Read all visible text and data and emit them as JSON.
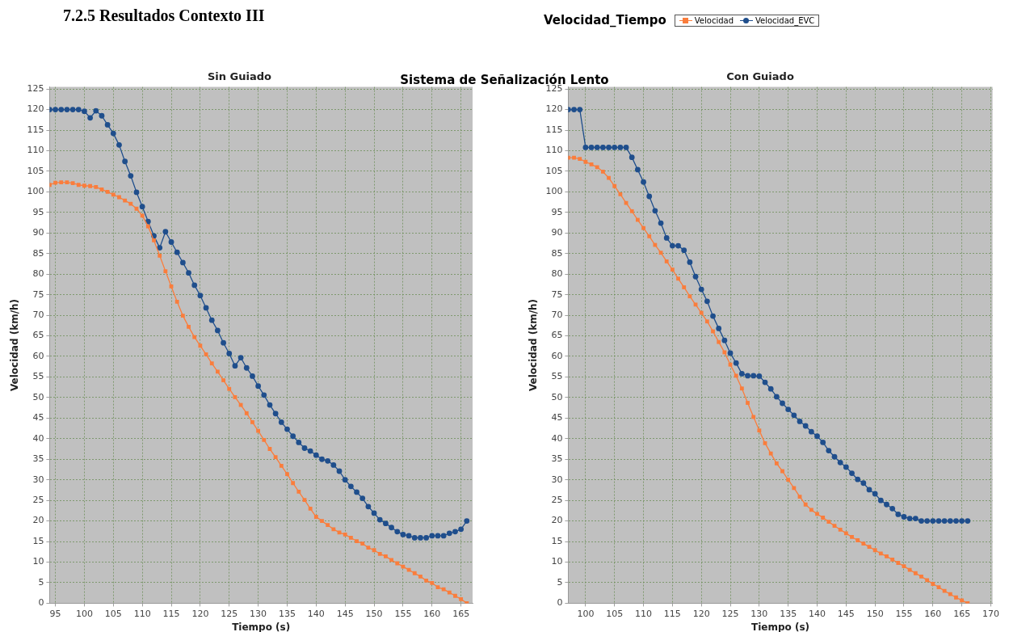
{
  "chart_data": [
    {
      "type": "line",
      "title": "Sin Guiado",
      "xlabel": "Tiempo (s)",
      "ylabel": "Velocidad (km/h)",
      "legend": "top",
      "legend_title": "Velocidad_Tiempo",
      "grid": true,
      "annotations": [
        "7.2.5 Resultados Contexto III",
        "Sistema de Señalización Lento"
      ],
      "xlim": [
        94,
        167
      ],
      "xticks": [
        95,
        100,
        105,
        110,
        115,
        120,
        125,
        130,
        135,
        140,
        145,
        150,
        155,
        160,
        165
      ],
      "ylim": [
        0,
        125.5
      ],
      "yticks": [
        0,
        5,
        10,
        15,
        20,
        25,
        30,
        35,
        40,
        45,
        50,
        55,
        60,
        65,
        70,
        75,
        80,
        85,
        90,
        95,
        100,
        105,
        110,
        115,
        120,
        125
      ],
      "x": [
        94,
        95,
        96,
        97,
        98,
        99,
        100,
        101,
        102,
        103,
        104,
        105,
        106,
        107,
        108,
        109,
        110,
        111,
        112,
        113,
        114,
        115,
        116,
        117,
        118,
        119,
        120,
        121,
        122,
        123,
        124,
        125,
        126,
        127,
        128,
        129,
        130,
        131,
        132,
        133,
        134,
        135,
        136,
        137,
        138,
        139,
        140,
        141,
        142,
        143,
        144,
        145,
        146,
        147,
        148,
        149,
        150,
        151,
        152,
        153,
        154,
        155,
        156,
        157,
        158,
        159,
        160,
        161,
        162,
        163,
        164,
        165,
        166
      ],
      "series": [
        {
          "name": "Velocidad",
          "color": "#fa7d3c",
          "marker": "square",
          "values": [
            101.7,
            102.2,
            102.3,
            102.3,
            102.1,
            101.7,
            101.5,
            101.4,
            101.2,
            100.6,
            100,
            99.3,
            98.7,
            97.9,
            97.1,
            95.9,
            94.2,
            91.6,
            88.2,
            84.5,
            80.7,
            77,
            73.3,
            69.9,
            67.2,
            64.7,
            62.6,
            60.5,
            58.3,
            56.3,
            54.2,
            52.1,
            50.1,
            48.2,
            46.2,
            44,
            41.9,
            39.7,
            37.5,
            35.5,
            33.4,
            31.4,
            29.2,
            27.1,
            25.1,
            23,
            21,
            20,
            19,
            18,
            17.2,
            16.7,
            15.9,
            15.1,
            14.5,
            13.5,
            12.9,
            12,
            11.4,
            10.5,
            9.7,
            8.9,
            8.1,
            7.3,
            6.5,
            5.5,
            4.9,
            3.9,
            3.4,
            2.6,
            1.8,
            1,
            0
          ]
        },
        {
          "name": "Velocidad_EVC",
          "color": "#1f4e8c",
          "marker": "circle",
          "values": [
            120,
            120,
            120,
            120,
            120,
            120,
            119.6,
            118,
            119.7,
            118.5,
            116.3,
            114.2,
            111.4,
            107.4,
            103.9,
            99.9,
            96.4,
            92.8,
            89.3,
            86.4,
            90.3,
            87.8,
            85.3,
            82.8,
            80.3,
            77.3,
            74.8,
            71.8,
            68.8,
            66.3,
            63.3,
            60.7,
            57.7,
            59.7,
            57.2,
            55.2,
            52.8,
            50.6,
            48.2,
            46.1,
            44,
            42.3,
            40.6,
            39.1,
            37.7,
            37,
            36,
            35,
            34.6,
            33.6,
            32.1,
            30,
            28.4,
            27,
            25.5,
            23.5,
            21.9,
            20.3,
            19.4,
            18.4,
            17.4,
            16.7,
            16.4,
            15.9,
            15.9,
            15.9,
            16.4,
            16.4,
            16.4,
            17,
            17.4,
            18,
            20
          ]
        }
      ]
    },
    {
      "type": "line",
      "title": "Con Guiado",
      "xlabel": "Tiempo (s)",
      "ylabel": "Velocidad (km/h)",
      "grid": true,
      "xlim": [
        97,
        170.3
      ],
      "xticks": [
        100,
        105,
        110,
        115,
        120,
        125,
        130,
        135,
        140,
        145,
        150,
        155,
        160,
        165,
        170
      ],
      "ylim": [
        0,
        125.5
      ],
      "yticks": [
        0,
        5,
        10,
        15,
        20,
        25,
        30,
        35,
        40,
        45,
        50,
        55,
        60,
        65,
        70,
        75,
        80,
        85,
        90,
        95,
        100,
        105,
        110,
        115,
        120,
        125
      ],
      "x": [
        97,
        98,
        99,
        100,
        101,
        102,
        103,
        104,
        105,
        106,
        107,
        108,
        109,
        110,
        111,
        112,
        113,
        114,
        115,
        116,
        117,
        118,
        119,
        120,
        121,
        122,
        123,
        124,
        125,
        126,
        127,
        128,
        129,
        130,
        131,
        132,
        133,
        134,
        135,
        136,
        137,
        138,
        139,
        140,
        141,
        142,
        143,
        144,
        145,
        146,
        147,
        148,
        149,
        150,
        151,
        152,
        153,
        154,
        155,
        156,
        157,
        158,
        159,
        160,
        161,
        162,
        163,
        164,
        165,
        166
      ],
      "series": [
        {
          "color": "#fa7d3c",
          "marker": "square",
          "values": [
            108.3,
            108.3,
            108,
            107.3,
            106.7,
            106,
            104.9,
            103.4,
            101.4,
            99.4,
            97.3,
            95.3,
            93.2,
            91.2,
            89.2,
            87.1,
            85.2,
            83.1,
            81.1,
            78.9,
            76.8,
            74.6,
            72.6,
            70.6,
            68.5,
            66.1,
            63.5,
            61,
            58,
            55.3,
            52.2,
            48.7,
            45.3,
            42,
            38.9,
            36.4,
            34,
            32.1,
            30,
            28,
            25.9,
            24,
            22.7,
            21.7,
            20.8,
            19.8,
            18.8,
            17.9,
            17,
            16.1,
            15.3,
            14.5,
            13.7,
            12.9,
            12.1,
            11.4,
            10.6,
            9.8,
            9,
            8.1,
            7.3,
            6.5,
            5.6,
            4.7,
            3.9,
            3,
            2.2,
            1.4,
            0.7,
            0
          ]
        },
        {
          "color": "#1f4e8c",
          "marker": "circle",
          "values": [
            120,
            120,
            120,
            110.8,
            110.8,
            110.8,
            110.8,
            110.8,
            110.8,
            110.8,
            110.8,
            108.4,
            105.4,
            102.4,
            98.9,
            95.4,
            92.4,
            88.8,
            86.9,
            86.9,
            85.8,
            82.9,
            79.4,
            76.3,
            73.4,
            69.8,
            66.8,
            63.9,
            60.8,
            58.4,
            55.8,
            55.3,
            55.3,
            55.2,
            53.7,
            52.1,
            50.2,
            48.6,
            47.1,
            45.7,
            44.2,
            43.1,
            41.7,
            40.6,
            39.1,
            37.1,
            35.6,
            34.2,
            33.1,
            31.6,
            30.1,
            29.2,
            27.6,
            26.6,
            25,
            24,
            23,
            21.6,
            21,
            20.6,
            20.6,
            20,
            20,
            20,
            20,
            20,
            20,
            20,
            20,
            20
          ]
        }
      ]
    }
  ]
}
